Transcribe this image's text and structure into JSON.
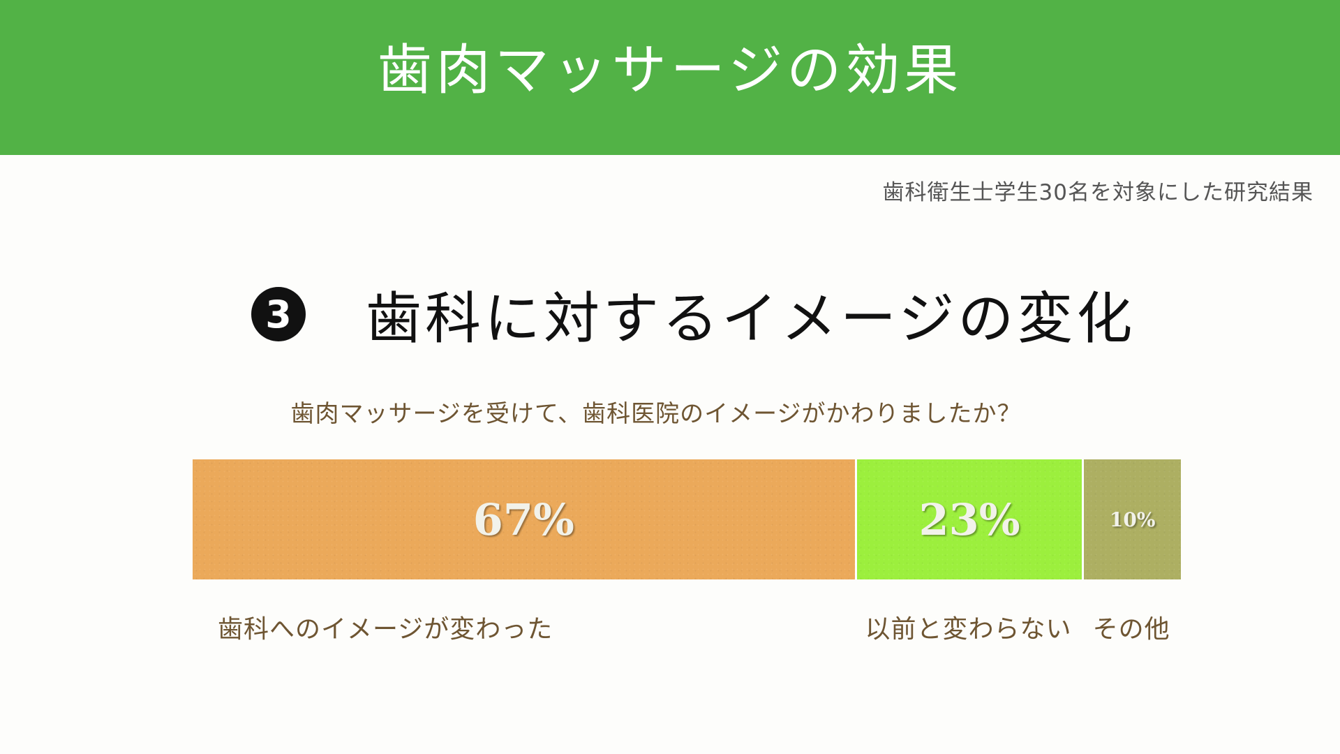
{
  "header": {
    "title": "歯肉マッサージの効果"
  },
  "study_note": "歯科衛生士学生30名を対象にした研究結果",
  "section": {
    "number": "3",
    "title": "歯科に対するイメージの変化"
  },
  "question": "歯肉マッサージを受けて、歯科医院のイメージがかわりましたか？",
  "colors": {
    "header_bg": "#52b246",
    "changed": "#eba95a",
    "unchanged": "#9cef3d",
    "other": "#adaf62",
    "label_text": "#6e5532"
  },
  "chart_data": {
    "type": "bar",
    "orientation": "horizontal-stacked",
    "categories": [
      "歯科へのイメージが変わった",
      "以前と変わらない",
      "その他"
    ],
    "values": [
      67,
      23,
      10
    ],
    "value_labels": [
      "67%",
      "23%",
      "10%"
    ],
    "unit": "%",
    "title": "",
    "xlabel": "",
    "ylabel": "",
    "legend": "none",
    "grid": false
  }
}
